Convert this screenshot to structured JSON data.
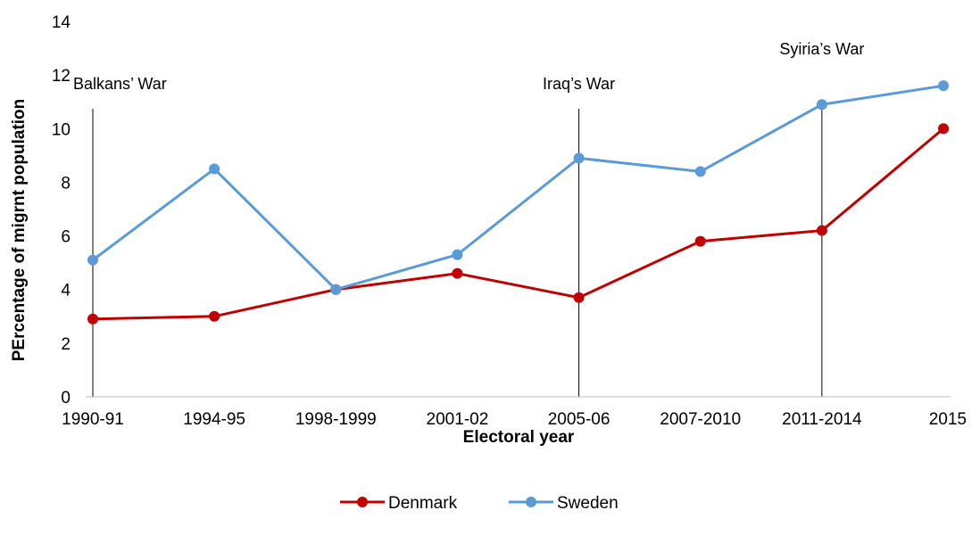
{
  "chart_data": {
    "type": "line",
    "title": "",
    "xlabel": "Electoral year",
    "ylabel": "PErcentage of migrnt population",
    "categories": [
      "1990-91",
      "1994-95",
      "1998-1999",
      "2001-02",
      "2005-06",
      "2007-2010",
      "2011-2014",
      "2015"
    ],
    "ylim": [
      0,
      14
    ],
    "yticks": [
      0,
      2,
      4,
      6,
      8,
      10,
      12,
      14
    ],
    "grid": false,
    "legend_position": "bottom",
    "series": [
      {
        "name": "Denmark",
        "color": "#C00000",
        "values": [
          2.9,
          3.0,
          4.0,
          4.6,
          3.7,
          5.8,
          6.2,
          10.0
        ]
      },
      {
        "name": "Sweden",
        "color": "#5B9BD5",
        "values": [
          5.1,
          8.5,
          4.0,
          5.3,
          8.9,
          8.4,
          10.9,
          11.6
        ]
      }
    ],
    "annotations": [
      {
        "label": "Balkans’ War",
        "category": "1990-91"
      },
      {
        "label": "Iraq’s War",
        "category": "2005-06"
      },
      {
        "label": "Syiria’s War",
        "category": "2011-2014"
      }
    ]
  }
}
